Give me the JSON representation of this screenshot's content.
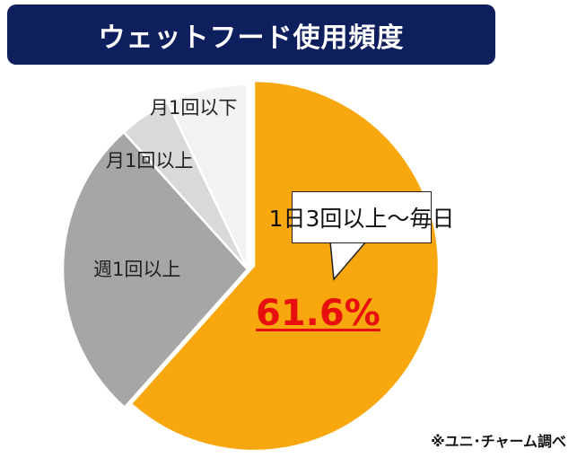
{
  "title": "ウェットフード使用頻度",
  "chart_data": {
    "type": "pie",
    "title": "ウェットフード使用頻度",
    "start": "top-clockwise",
    "slices": [
      {
        "label": "1日3回以上～毎日",
        "value": 61.6,
        "color": "#F8A80E"
      },
      {
        "label": "週1回以上",
        "value": 26.7,
        "color": "#A6A6A6"
      },
      {
        "label": "月1回以上",
        "value": 4.6,
        "color": "#D9D9D9"
      },
      {
        "label": "月1回以下",
        "value": 7.1,
        "color": "#F2F2F2"
      }
    ],
    "highlight_label": "61.6%",
    "highlight_color": "#E8100F"
  },
  "source": "※ユニ･チャーム調べ"
}
